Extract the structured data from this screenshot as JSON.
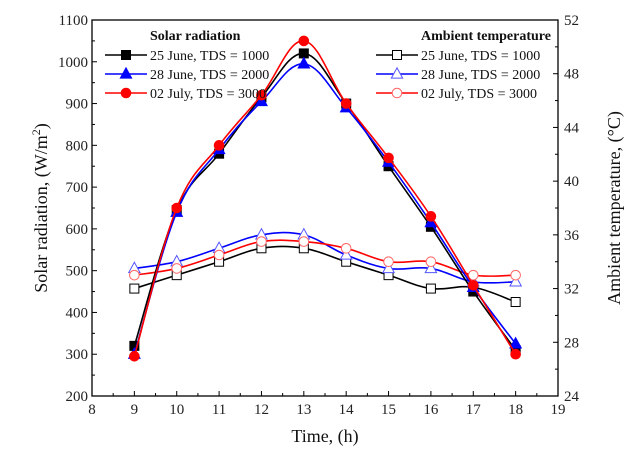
{
  "chart_data": {
    "type": "line",
    "title": "",
    "xlabel": "Time, (h)",
    "ylabel": "Solar radiation, (W/m²)",
    "ylabel_base": "Solar radiation, (W/m",
    "ylabel_sup": "2",
    "ylabel_end": ")",
    "y2label": "Ambient temperature, (°C)",
    "xlim": [
      8,
      19
    ],
    "ylim": [
      200,
      1100
    ],
    "y2lim": [
      24,
      52
    ],
    "x_ticks": [
      8,
      9,
      10,
      11,
      12,
      13,
      14,
      15,
      16,
      17,
      18,
      19
    ],
    "y_ticks": [
      200,
      300,
      400,
      500,
      600,
      700,
      800,
      900,
      1000,
      1100
    ],
    "y2_ticks": [
      24,
      28,
      32,
      36,
      40,
      44,
      48,
      52
    ],
    "grid": false,
    "x": [
      9,
      10,
      11,
      12,
      13,
      14,
      15,
      16,
      17,
      18
    ],
    "legends": [
      {
        "title": "Solar radiation",
        "placement": "top-left"
      },
      {
        "title": "Ambient temperature",
        "placement": "top-right"
      }
    ],
    "series": [
      {
        "name": "25 June, TDS = 1000",
        "group": "Solar radiation",
        "axis": "left",
        "color": "#000000",
        "marker": "square",
        "filled": true,
        "values": [
          320,
          645,
          780,
          915,
          1020,
          900,
          750,
          605,
          450,
          310
        ]
      },
      {
        "name": "28 June, TDS = 2000",
        "group": "Solar radiation",
        "axis": "left",
        "color": "#0000ff",
        "marker": "triangle",
        "filled": true,
        "values": [
          300,
          640,
          790,
          905,
          995,
          890,
          760,
          615,
          460,
          325
        ]
      },
      {
        "name": "02 July, TDS = 3000",
        "group": "Solar radiation",
        "axis": "left",
        "color": "#ff0000",
        "marker": "circle",
        "filled": true,
        "values": [
          295,
          650,
          800,
          920,
          1050,
          900,
          770,
          630,
          465,
          300
        ]
      },
      {
        "name": "25 June, TDS = 1000",
        "group": "Ambient temperature",
        "axis": "right",
        "color": "#000000",
        "marker": "square",
        "filled": false,
        "values": [
          32.0,
          33.0,
          34.0,
          35.0,
          35.0,
          34.0,
          33.0,
          32.0,
          32.1,
          31.0
        ]
      },
      {
        "name": "28 June, TDS = 2000",
        "group": "Ambient temperature",
        "axis": "right",
        "color": "#0000ff",
        "marker": "triangle",
        "filled": false,
        "values": [
          33.5,
          34.0,
          35.0,
          36.0,
          36.0,
          34.5,
          33.5,
          33.5,
          32.5,
          32.5
        ]
      },
      {
        "name": "02 July, TDS = 3000",
        "group": "Ambient temperature",
        "axis": "right",
        "color": "#ff0000",
        "marker": "circle",
        "filled": false,
        "values": [
          33.0,
          33.5,
          34.5,
          35.5,
          35.5,
          35.0,
          34.0,
          34.0,
          33.0,
          33.0
        ]
      }
    ]
  }
}
